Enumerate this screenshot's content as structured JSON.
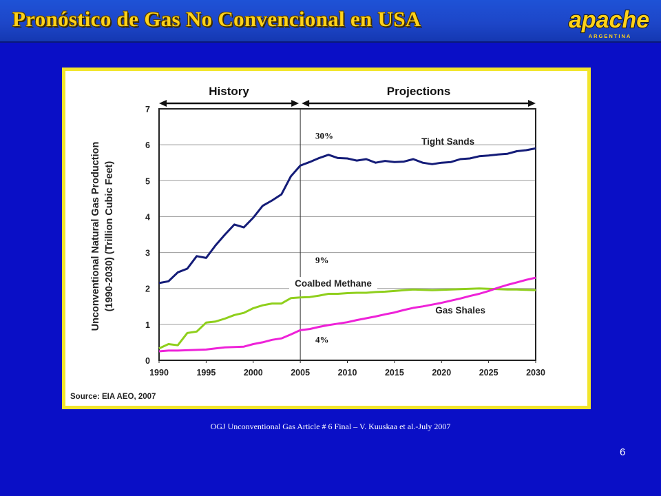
{
  "slide": {
    "title": "Pronóstico de Gas No Convencional en USA",
    "logo_text": "apache",
    "logo_subtext": "ARGENTINA",
    "footnote": "OGJ Unconventional Gas Article # 6 Final – V. Kuuskaa et al.-July 2007",
    "page_number": "6",
    "colors": {
      "background": "#0a0fc6",
      "title": "#ffd21a",
      "frame": "#f2e52c"
    }
  },
  "chart_data": {
    "type": "line",
    "title": "",
    "xlabel": "",
    "ylabel": "Unconventional Natural Gas Production (1990-2030) (Trillion Cubic Feet)",
    "ylabel_lines": [
      "Unconventional Natural Gas Production",
      "(1990-2030) (Trillion Cubic Feet)"
    ],
    "xlim": [
      1990,
      2030
    ],
    "ylim": [
      0,
      7
    ],
    "x_ticks": [
      1990,
      1995,
      2000,
      2005,
      2010,
      2015,
      2020,
      2025,
      2030
    ],
    "y_ticks": [
      0,
      1,
      2,
      3,
      4,
      5,
      6,
      7
    ],
    "grid": "horizontal",
    "divider_x": 2005,
    "sections": [
      {
        "label": "History",
        "from": 1990,
        "to": 2005
      },
      {
        "label": "Projections",
        "from": 2005,
        "to": 2030
      }
    ],
    "source": "Source: EIA AEO, 2007",
    "series": [
      {
        "name": "Tight Sands",
        "color": "#141c78",
        "x": [
          1990,
          1991,
          1992,
          1993,
          1994,
          1995,
          1996,
          1997,
          1998,
          1999,
          2000,
          2001,
          2002,
          2003,
          2004,
          2005,
          2006,
          2007,
          2008,
          2009,
          2010,
          2011,
          2012,
          2013,
          2014,
          2015,
          2016,
          2017,
          2018,
          2019,
          2020,
          2021,
          2022,
          2023,
          2024,
          2025,
          2026,
          2027,
          2028,
          2029,
          2030
        ],
        "y": [
          2.15,
          2.2,
          2.45,
          2.55,
          2.9,
          2.85,
          3.2,
          3.5,
          3.78,
          3.7,
          3.97,
          4.3,
          4.45,
          4.62,
          5.12,
          5.42,
          5.52,
          5.63,
          5.72,
          5.63,
          5.62,
          5.56,
          5.6,
          5.5,
          5.55,
          5.52,
          5.53,
          5.6,
          5.5,
          5.46,
          5.5,
          5.52,
          5.6,
          5.62,
          5.68,
          5.7,
          5.73,
          5.75,
          5.82,
          5.85,
          5.9
        ]
      },
      {
        "name": "Coalbed Methane",
        "color": "#8fcf1c",
        "x": [
          1990,
          1991,
          1992,
          1993,
          1994,
          1995,
          1996,
          1997,
          1998,
          1999,
          2000,
          2001,
          2002,
          2003,
          2004,
          2005,
          2006,
          2007,
          2008,
          2009,
          2010,
          2011,
          2012,
          2013,
          2014,
          2015,
          2016,
          2017,
          2018,
          2019,
          2020,
          2021,
          2022,
          2023,
          2024,
          2025,
          2026,
          2027,
          2028,
          2029,
          2030
        ],
        "y": [
          0.33,
          0.45,
          0.42,
          0.76,
          0.8,
          1.05,
          1.08,
          1.16,
          1.26,
          1.32,
          1.45,
          1.53,
          1.58,
          1.58,
          1.73,
          1.75,
          1.76,
          1.8,
          1.85,
          1.85,
          1.87,
          1.88,
          1.88,
          1.9,
          1.91,
          1.93,
          1.95,
          1.97,
          1.96,
          1.95,
          1.96,
          1.97,
          1.98,
          1.99,
          2.0,
          1.99,
          1.98,
          1.97,
          1.97,
          1.96,
          1.95
        ]
      },
      {
        "name": "Gas Shales",
        "color": "#ee22d8",
        "x": [
          1990,
          1991,
          1992,
          1993,
          1994,
          1995,
          1996,
          1997,
          1998,
          1999,
          2000,
          2001,
          2002,
          2003,
          2004,
          2005,
          2006,
          2007,
          2008,
          2009,
          2010,
          2011,
          2012,
          2013,
          2014,
          2015,
          2016,
          2017,
          2018,
          2019,
          2020,
          2021,
          2022,
          2023,
          2024,
          2025,
          2026,
          2027,
          2028,
          2029,
          2030
        ],
        "y": [
          0.25,
          0.27,
          0.27,
          0.28,
          0.29,
          0.3,
          0.33,
          0.36,
          0.37,
          0.38,
          0.45,
          0.5,
          0.57,
          0.61,
          0.72,
          0.84,
          0.87,
          0.93,
          0.98,
          1.02,
          1.06,
          1.12,
          1.17,
          1.22,
          1.28,
          1.33,
          1.4,
          1.46,
          1.5,
          1.55,
          1.6,
          1.66,
          1.72,
          1.79,
          1.85,
          1.93,
          2.02,
          2.1,
          2.17,
          2.24,
          2.3
        ]
      }
    ],
    "annotations": [
      "30%",
      "9%",
      "4%"
    ]
  }
}
